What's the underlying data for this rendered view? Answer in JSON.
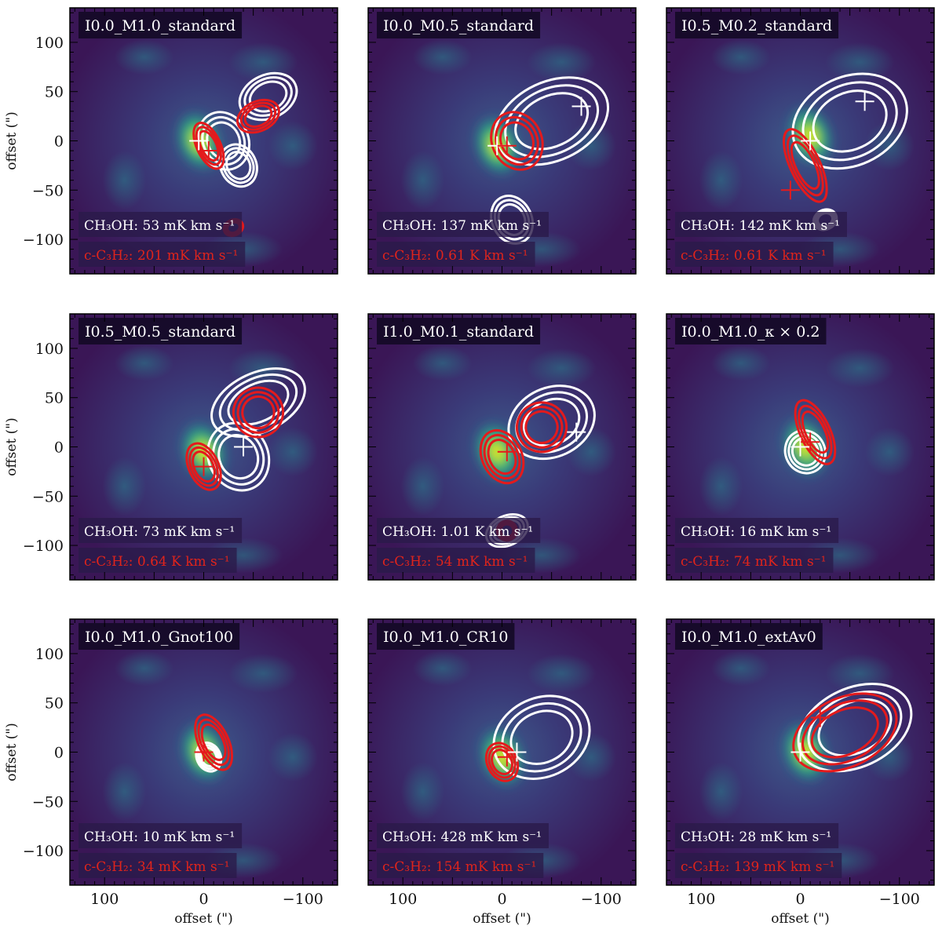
{
  "colors": {
    "background": "#3a1a5c",
    "white_contour": "#ffffff",
    "red_contour": "#e41a1c",
    "label_box": "#1f0f3a"
  },
  "chart_data": {
    "type": "heatmap",
    "description_axis": {
      "xlabel": "offset (\")",
      "ylabel": "offset (\")",
      "xlim": [
        135,
        -135
      ],
      "ylim": [
        -135,
        135
      ],
      "xticks": [
        100,
        0,
        -100
      ],
      "xtick_labels": [
        "100",
        "0",
        "−100"
      ],
      "yticks": [
        100,
        50,
        0,
        -50,
        -100
      ],
      "ytick_labels": [
        "100",
        "50",
        "0",
        "−50",
        "−100"
      ]
    },
    "panels": [
      {
        "title": "I0.0_M1.0_standard",
        "ch3oh_label": "CH₃OH: 53 mK km s⁻¹",
        "c3h2_label": "c-C₃H₂: 201 mK km s⁻¹",
        "peak_offset": [
          5,
          0
        ],
        "white_blobs": [
          [
            -20,
            0,
            25,
            30
          ],
          [
            -65,
            45,
            30,
            22
          ],
          [
            -35,
            -25,
            18,
            22
          ]
        ],
        "red_blobs": [
          [
            -5,
            -5,
            12,
            25
          ],
          [
            -55,
            25,
            22,
            15
          ],
          [
            -30,
            -88,
            10,
            8
          ]
        ],
        "white_crosses": [
          [
            5,
            0
          ]
        ],
        "red_crosses": [
          [
            -5,
            -10
          ]
        ]
      },
      {
        "title": "I0.0_M0.5_standard",
        "ch3oh_label": "CH₃OH: 137 mK km s⁻¹",
        "c3h2_label": "c-C₃H₂: 0.61 K km s⁻¹",
        "peak_offset": [
          5,
          -5
        ],
        "white_blobs": [
          [
            -50,
            20,
            60,
            40
          ],
          [
            -10,
            -80,
            20,
            25
          ]
        ],
        "red_blobs": [
          [
            -15,
            0,
            25,
            30
          ]
        ],
        "white_crosses": [
          [
            -80,
            35
          ],
          [
            5,
            -5
          ]
        ],
        "red_crosses": [
          [
            -5,
            -5
          ]
        ]
      },
      {
        "title": "I0.5_M0.2_standard",
        "ch3oh_label": "CH₃OH: 142 mK km s⁻¹",
        "c3h2_label": "c-C₃H₂: 0.61 K km s⁻¹",
        "peak_offset": [
          -10,
          5
        ],
        "white_blobs": [
          [
            -50,
            20,
            60,
            45
          ],
          [
            -25,
            -80,
            12,
            10
          ]
        ],
        "red_blobs": [
          [
            -5,
            -25,
            15,
            40
          ]
        ],
        "white_crosses": [
          [
            -65,
            40
          ],
          [
            -10,
            0
          ]
        ],
        "red_crosses": [
          [
            10,
            -50
          ]
        ]
      },
      {
        "title": "I0.5_M0.5_standard",
        "ch3oh_label": "CH₃OH: 73 mK km s⁻¹",
        "c3h2_label": "c-C₃H₂: 0.64 K km s⁻¹",
        "peak_offset": [
          0,
          -5
        ],
        "white_blobs": [
          [
            -55,
            45,
            50,
            30
          ],
          [
            -35,
            -10,
            30,
            35
          ]
        ],
        "red_blobs": [
          [
            0,
            -20,
            15,
            25
          ],
          [
            -55,
            35,
            25,
            25
          ]
        ],
        "white_crosses": [
          [
            -40,
            0
          ]
        ],
        "red_crosses": [
          [
            0,
            -20
          ]
        ]
      },
      {
        "title": "I1.0_M0.1_standard",
        "ch3oh_label": "CH₃OH: 1.01 K km s⁻¹",
        "c3h2_label": "c-C₃H₂: 54 mK km s⁻¹",
        "peak_offset": [
          5,
          -5
        ],
        "white_blobs": [
          [
            -50,
            25,
            45,
            35
          ],
          [
            -5,
            -85,
            22,
            15
          ]
        ],
        "red_blobs": [
          [
            0,
            -10,
            20,
            28
          ],
          [
            -40,
            20,
            25,
            25
          ],
          [
            -5,
            -85,
            10,
            10
          ]
        ],
        "white_crosses": [
          [
            -75,
            15
          ]
        ],
        "red_crosses": [
          [
            -5,
            -5
          ]
        ]
      },
      {
        "title": "I0.0_M1.0_κ × 0.2",
        "ch3oh_label": "CH₃OH: 16 mK km s⁻¹",
        "c3h2_label": "c-C₃H₂: 74 mK km s⁻¹",
        "peak_offset": [
          -5,
          0
        ],
        "white_blobs": [
          [
            -5,
            -5,
            20,
            22
          ]
        ],
        "red_blobs": [
          [
            -15,
            15,
            15,
            35
          ]
        ],
        "white_crosses": [
          [
            0,
            0
          ]
        ],
        "red_crosses": [
          [
            -10,
            5
          ]
        ]
      },
      {
        "title": "I0.0_M1.0_Gnot100",
        "ch3oh_label": "CH₃OH: 10 mK km s⁻¹",
        "c3h2_label": "c-C₃H₂: 34 mK km s⁻¹",
        "peak_offset": [
          0,
          0
        ],
        "white_blobs": [
          [
            -5,
            -5,
            12,
            15
          ]
        ],
        "red_blobs": [
          [
            -10,
            10,
            15,
            30
          ]
        ],
        "white_crosses": [
          [
            0,
            0
          ]
        ],
        "red_crosses": [
          [
            0,
            0
          ]
        ]
      },
      {
        "title": "I0.0_M1.0_CR10",
        "ch3oh_label": "CH₃OH: 428 mK km s⁻¹",
        "c3h2_label": "c-C₃H₂: 154 mK km s⁻¹",
        "peak_offset": [
          0,
          -5
        ],
        "white_blobs": [
          [
            -40,
            15,
            50,
            40
          ]
        ],
        "red_blobs": [
          [
            0,
            -10,
            15,
            20
          ]
        ],
        "white_crosses": [
          [
            -15,
            0
          ]
        ],
        "red_crosses": [
          [
            -5,
            -5
          ]
        ]
      },
      {
        "title": "I0.0_M1.0_extAv0",
        "ch3oh_label": "CH₃OH: 28 mK km s⁻¹",
        "c3h2_label": "c-C₃H₂: 139 mK km s⁻¹",
        "peak_offset": [
          -5,
          0
        ],
        "white_blobs": [
          [
            -55,
            25,
            60,
            40
          ]
        ],
        "red_blobs": [
          [
            -45,
            20,
            55,
            35
          ]
        ],
        "white_crosses": [
          [
            0,
            0
          ]
        ],
        "red_crosses": [
          [
            -20,
            35
          ]
        ]
      }
    ]
  }
}
